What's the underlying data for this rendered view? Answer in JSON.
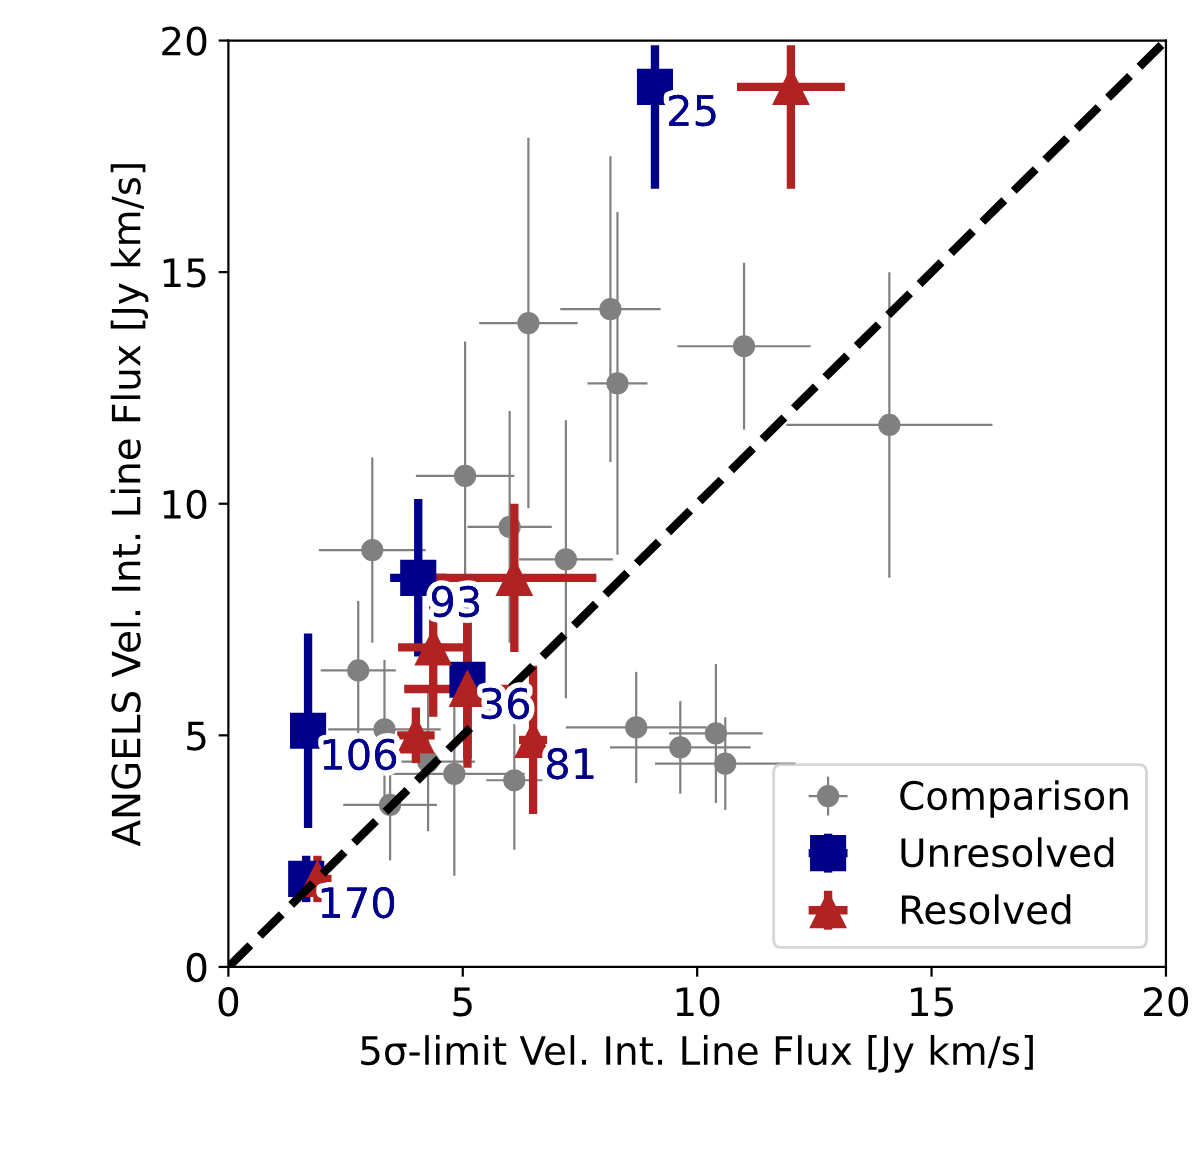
{
  "chart_data": {
    "type": "scatter",
    "xlabel": "5σ-limit Vel. Int. Line Flux [Jy km/s]",
    "ylabel": "ANGELS Vel. Int. Line Flux [Jy km/s]",
    "xlim": [
      0,
      20
    ],
    "ylim": [
      0,
      20
    ],
    "xticks": [
      0,
      5,
      10,
      15,
      20
    ],
    "yticks": [
      0,
      5,
      10,
      15,
      20
    ],
    "grid": false,
    "legend": "bottom right",
    "series": [
      {
        "name": "Comparison",
        "color": "#808080",
        "marker": "circle",
        "x": [
          6.4,
          8.15,
          8.3,
          11.0,
          14.1,
          5.05,
          6.0,
          3.07,
          7.2,
          2.77,
          3.33,
          4.26,
          4.82,
          6.1,
          3.45,
          8.7,
          10.4,
          9.64,
          10.6
        ],
        "values": [
          13.9,
          14.2,
          12.6,
          13.4,
          11.7,
          10.6,
          9.5,
          9.0,
          8.8,
          6.4,
          5.13,
          4.43,
          4.17,
          4.03,
          3.5,
          5.17,
          5.04,
          4.74,
          4.39
        ],
        "errors": [
          4.0,
          3.3,
          3.7,
          1.8,
          3.3,
          2.9,
          2.5,
          2.0,
          3.0,
          1.5,
          1.5,
          1.5,
          2.2,
          1.5,
          1.2,
          1.2,
          1.5,
          1.0,
          1.0
        ],
        "xerrors": [
          1.05,
          1.07,
          0.64,
          1.42,
          2.2,
          1.05,
          0.9,
          1.14,
          1.0,
          0.8,
          1.2,
          1.0,
          1.5,
          0.6,
          1.0,
          1.5,
          1.0,
          1.5,
          1.5
        ]
      },
      {
        "name": "Unresolved",
        "color": "#00008b",
        "marker": "square",
        "x": [
          9.1,
          4.05,
          5.1,
          1.7,
          1.66
        ],
        "values": [
          19.0,
          8.4,
          6.2,
          5.1,
          1.9
        ],
        "errors": [
          [
            16.8,
            19.9
          ],
          1.7,
          1.7,
          2.1,
          0.5
        ],
        "xerrors": [
          0.2,
          0.6,
          0.3,
          0.2,
          0.2
        ]
      },
      {
        "name": "Resolved",
        "color": "#b22222",
        "marker": "triangle",
        "x": [
          12.0,
          6.1,
          4.37,
          5.1,
          6.5,
          4.0,
          1.9
        ],
        "values": [
          19.0,
          8.4,
          6.9,
          6.0,
          4.9,
          5.0,
          1.9
        ],
        "errors": [
          [
            16.8,
            19.9
          ],
          1.6,
          1.5,
          1.7,
          1.6,
          0.6,
          0.5
        ],
        "xerrors": [
          1.15,
          1.75,
          0.75,
          1.35,
          0.3,
          0.4,
          0.3
        ]
      },
      {
        "type": "line",
        "color": "#000000",
        "line_style": "dashed",
        "x": [
          0,
          20
        ],
        "values": [
          0,
          20
        ]
      }
    ],
    "annotations": [
      {
        "text": "25",
        "x": 9.1,
        "y": 19.0
      },
      {
        "text": "93",
        "x": 4.05,
        "y": 8.4
      },
      {
        "text": "36",
        "x": 5.1,
        "y": 6.2
      },
      {
        "text": "81",
        "x": 6.5,
        "y": 4.9
      },
      {
        "text": "106",
        "x": 1.7,
        "y": 5.1
      },
      {
        "text": "170",
        "x": 1.66,
        "y": 1.9
      }
    ]
  }
}
